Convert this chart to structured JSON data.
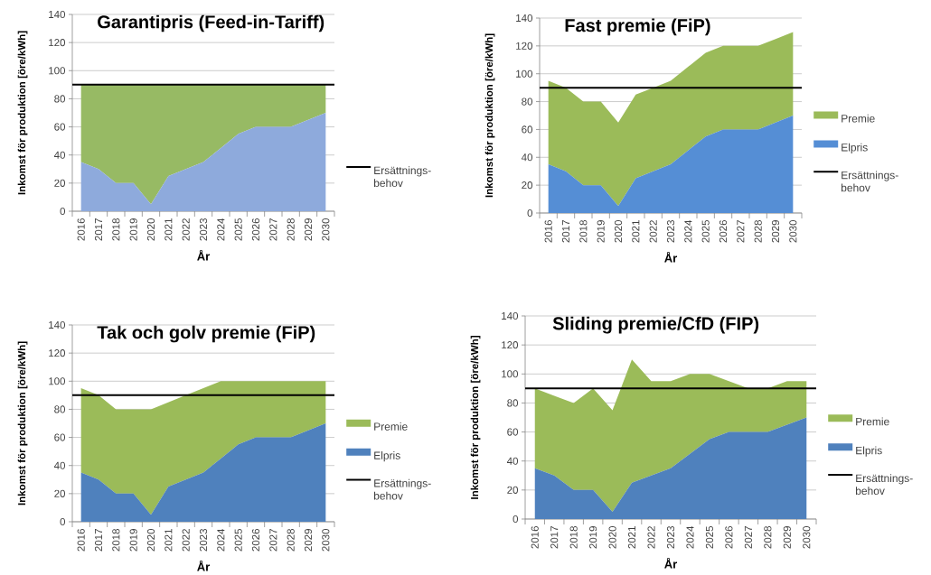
{
  "chart_data": [
    {
      "type": "area",
      "stacked": true,
      "title": "Garantipris (Feed-in-Tariff)",
      "xlabel": "År",
      "ylabel": "Inkomst för produktion [öre/kWh]",
      "categories": [
        "2016",
        "2017",
        "2018",
        "2019",
        "2020",
        "2021",
        "2022",
        "2023",
        "2024",
        "2025",
        "2026",
        "2027",
        "2028",
        "2029",
        "2030"
      ],
      "series": [
        {
          "color": "#8eaadc",
          "values": [
            35,
            30,
            20,
            20,
            5,
            25,
            30,
            35,
            45,
            55,
            60,
            60,
            60,
            65,
            70
          ]
        },
        {
          "color": "#97ba64",
          "values": [
            55,
            60,
            70,
            70,
            85,
            65,
            60,
            55,
            45,
            35,
            30,
            30,
            30,
            25,
            20
          ]
        }
      ],
      "ref_lines": [
        {
          "axis": "y",
          "value": 90,
          "label": "Ersättnings-behov",
          "color": "#000000"
        }
      ],
      "ylim": [
        0,
        140
      ],
      "yticks": [
        0,
        20,
        40,
        60,
        80,
        100,
        120,
        140
      ],
      "grid": "y",
      "legend": "right"
    },
    {
      "type": "area",
      "stacked": true,
      "title": "Fast premie (FiP)",
      "xlabel": "År",
      "ylabel": "Inkomst för produktion [öre/kWh]",
      "categories": [
        "2016",
        "2017",
        "2018",
        "2019",
        "2020",
        "2021",
        "2022",
        "2023",
        "2024",
        "2025",
        "2026",
        "2027",
        "2028",
        "2029",
        "2030"
      ],
      "series": [
        {
          "name": "Elpris",
          "color": "#558ed5",
          "values": [
            35,
            30,
            20,
            20,
            5,
            25,
            30,
            35,
            45,
            55,
            60,
            60,
            60,
            65,
            70
          ]
        },
        {
          "name": "Premie",
          "color": "#9bbb59",
          "values": [
            60,
            60,
            60,
            60,
            60,
            60,
            60,
            60,
            60,
            60,
            60,
            60,
            60,
            60,
            60
          ]
        }
      ],
      "ref_lines": [
        {
          "axis": "y",
          "value": 90,
          "label": "Ersättnings-behov",
          "color": "#000000"
        }
      ],
      "ylim": [
        0,
        140
      ],
      "yticks": [
        0,
        20,
        40,
        60,
        80,
        100,
        120,
        140
      ],
      "grid": "y",
      "legend": "right"
    },
    {
      "type": "area",
      "stacked": true,
      "title": "Tak och golv premie (FiP)",
      "xlabel": "År",
      "ylabel": "Inkomst för produktion [öre/kWh]",
      "categories": [
        "2016",
        "2017",
        "2018",
        "2019",
        "2020",
        "2021",
        "2022",
        "2023",
        "2024",
        "2025",
        "2026",
        "2027",
        "2028",
        "2029",
        "2030"
      ],
      "series": [
        {
          "name": "Elpris",
          "color": "#4f81bd",
          "values": [
            35,
            30,
            20,
            20,
            5,
            25,
            30,
            35,
            45,
            55,
            60,
            60,
            60,
            65,
            70
          ]
        },
        {
          "name": "Premie",
          "color": "#9bbb59",
          "values": [
            60,
            60,
            60,
            60,
            75,
            60,
            60,
            60,
            55,
            45,
            40,
            40,
            40,
            35,
            30
          ]
        }
      ],
      "ref_lines": [
        {
          "axis": "y",
          "value": 90,
          "label": "Ersättnings-behov",
          "color": "#000000"
        }
      ],
      "ylim": [
        0,
        140
      ],
      "yticks": [
        0,
        20,
        40,
        60,
        80,
        100,
        120,
        140
      ],
      "grid": "y",
      "legend": "right"
    },
    {
      "type": "area",
      "stacked": true,
      "title": "Sliding premie/CfD (FIP)",
      "xlabel": "År",
      "ylabel": "Inkomst för produktion [öre/kWh]",
      "categories": [
        "2016",
        "2017",
        "2018",
        "2019",
        "2020",
        "2021",
        "2022",
        "2023",
        "2024",
        "2025",
        "2026",
        "2027",
        "2028",
        "2029",
        "2030"
      ],
      "series": [
        {
          "name": "Elpris",
          "color": "#4f81bd",
          "values": [
            35,
            30,
            20,
            20,
            5,
            25,
            30,
            35,
            45,
            55,
            60,
            60,
            60,
            65,
            70
          ]
        },
        {
          "name": "Premie",
          "color": "#9bbb59",
          "values": [
            55,
            55,
            60,
            70,
            70,
            85,
            65,
            60,
            55,
            45,
            35,
            30,
            30,
            30,
            25
          ]
        }
      ],
      "ref_lines": [
        {
          "axis": "y",
          "value": 90,
          "label": "Ersättnings-behov",
          "color": "#000000"
        }
      ],
      "ylim": [
        0,
        140
      ],
      "yticks": [
        0,
        20,
        40,
        60,
        80,
        100,
        120,
        140
      ],
      "grid": "y",
      "legend": "right"
    }
  ]
}
